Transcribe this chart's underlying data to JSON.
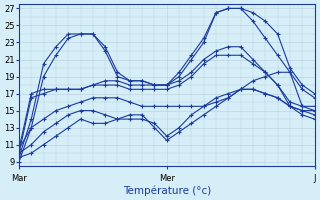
{
  "title": "",
  "xlabel": "Température (°c)",
  "ylabel": "",
  "bg_color": "#d6eef8",
  "line_color": "#1a3a9e",
  "grid_color": "#b8cdd8",
  "ylim": [
    8.5,
    27.5
  ],
  "yticks": [
    9,
    11,
    13,
    15,
    17,
    19,
    21,
    23,
    25,
    27
  ],
  "xlim": [
    0,
    48
  ],
  "xtick_positions": [
    0,
    24,
    48
  ],
  "xtick_labels": [
    "Mar",
    "Mer",
    "J"
  ],
  "series": [
    {
      "x": [
        0,
        2,
        4,
        6,
        8,
        10,
        12,
        14,
        16,
        18,
        20,
        22,
        24,
        26,
        28,
        30,
        32,
        34,
        36,
        38,
        40,
        42,
        44,
        46,
        48
      ],
      "y": [
        9.5,
        14.0,
        20.5,
        22.5,
        24.0,
        24.0,
        24.0,
        22.0,
        19.0,
        18.5,
        18.5,
        18.0,
        18.0,
        19.0,
        21.0,
        23.0,
        26.5,
        27.0,
        27.0,
        26.5,
        25.5,
        24.0,
        20.0,
        18.0,
        17.0
      ]
    },
    {
      "x": [
        0,
        2,
        4,
        6,
        8,
        10,
        12,
        14,
        16,
        18,
        20,
        22,
        24,
        26,
        28,
        30,
        32,
        34,
        36,
        38,
        40,
        42,
        44,
        46,
        48
      ],
      "y": [
        9.0,
        13.0,
        19.0,
        21.5,
        23.5,
        24.0,
        24.0,
        22.5,
        19.5,
        18.5,
        18.5,
        18.0,
        18.0,
        19.5,
        21.5,
        23.5,
        26.5,
        27.0,
        27.0,
        25.5,
        23.5,
        21.5,
        19.5,
        17.5,
        16.5
      ]
    },
    {
      "x": [
        0,
        2,
        4,
        6,
        8,
        10,
        12,
        14,
        16,
        18,
        20,
        22,
        24,
        26,
        28,
        30,
        32,
        34,
        36,
        38,
        40,
        42,
        44,
        46,
        48
      ],
      "y": [
        10.0,
        16.5,
        17.0,
        17.5,
        17.5,
        17.5,
        18.0,
        18.0,
        18.0,
        17.5,
        17.5,
        17.5,
        17.5,
        18.0,
        19.0,
        20.5,
        21.5,
        21.5,
        21.5,
        20.5,
        19.5,
        18.0,
        15.5,
        15.0,
        15.0
      ]
    },
    {
      "x": [
        0,
        2,
        4,
        6,
        8,
        10,
        12,
        14,
        16,
        18,
        20,
        22,
        24,
        26,
        28,
        30,
        32,
        34,
        36,
        38,
        40,
        42,
        44,
        46,
        48
      ],
      "y": [
        10.5,
        17.0,
        17.5,
        17.5,
        17.5,
        17.5,
        18.0,
        18.5,
        18.5,
        18.0,
        18.0,
        18.0,
        18.0,
        18.5,
        19.5,
        21.0,
        22.0,
        22.5,
        22.5,
        21.0,
        19.5,
        18.0,
        16.0,
        15.5,
        15.5
      ]
    },
    {
      "x": [
        0,
        2,
        4,
        6,
        8,
        10,
        12,
        14,
        16,
        18,
        20,
        22,
        24,
        26,
        28,
        30,
        32,
        34,
        36,
        38,
        40,
        42,
        44,
        46,
        48
      ],
      "y": [
        10.5,
        13.0,
        14.0,
        15.0,
        15.5,
        16.0,
        16.5,
        16.5,
        16.5,
        16.0,
        15.5,
        15.5,
        15.5,
        15.5,
        15.5,
        15.5,
        16.0,
        16.5,
        17.5,
        18.5,
        19.0,
        19.5,
        19.5,
        15.5,
        15.0
      ]
    },
    {
      "x": [
        0,
        2,
        4,
        6,
        8,
        10,
        12,
        14,
        16,
        18,
        20,
        22,
        24,
        26,
        28,
        30,
        32,
        34,
        36,
        38,
        40,
        42,
        44,
        46,
        48
      ],
      "y": [
        10.0,
        11.0,
        12.5,
        13.5,
        14.5,
        15.0,
        15.0,
        14.5,
        14.0,
        14.0,
        14.0,
        13.5,
        12.0,
        13.0,
        14.5,
        15.5,
        16.5,
        17.0,
        17.5,
        17.5,
        17.0,
        16.5,
        15.5,
        15.0,
        14.5
      ]
    },
    {
      "x": [
        0,
        2,
        4,
        6,
        8,
        10,
        12,
        14,
        16,
        18,
        20,
        22,
        24,
        26,
        28,
        30,
        32,
        34,
        36,
        38,
        40,
        42,
        44,
        46,
        48
      ],
      "y": [
        9.5,
        10.0,
        11.0,
        12.0,
        13.0,
        14.0,
        13.5,
        13.5,
        14.0,
        14.5,
        14.5,
        13.0,
        11.5,
        12.5,
        13.5,
        14.5,
        15.5,
        16.5,
        17.5,
        17.5,
        17.0,
        16.5,
        15.5,
        14.5,
        14.0
      ]
    }
  ]
}
